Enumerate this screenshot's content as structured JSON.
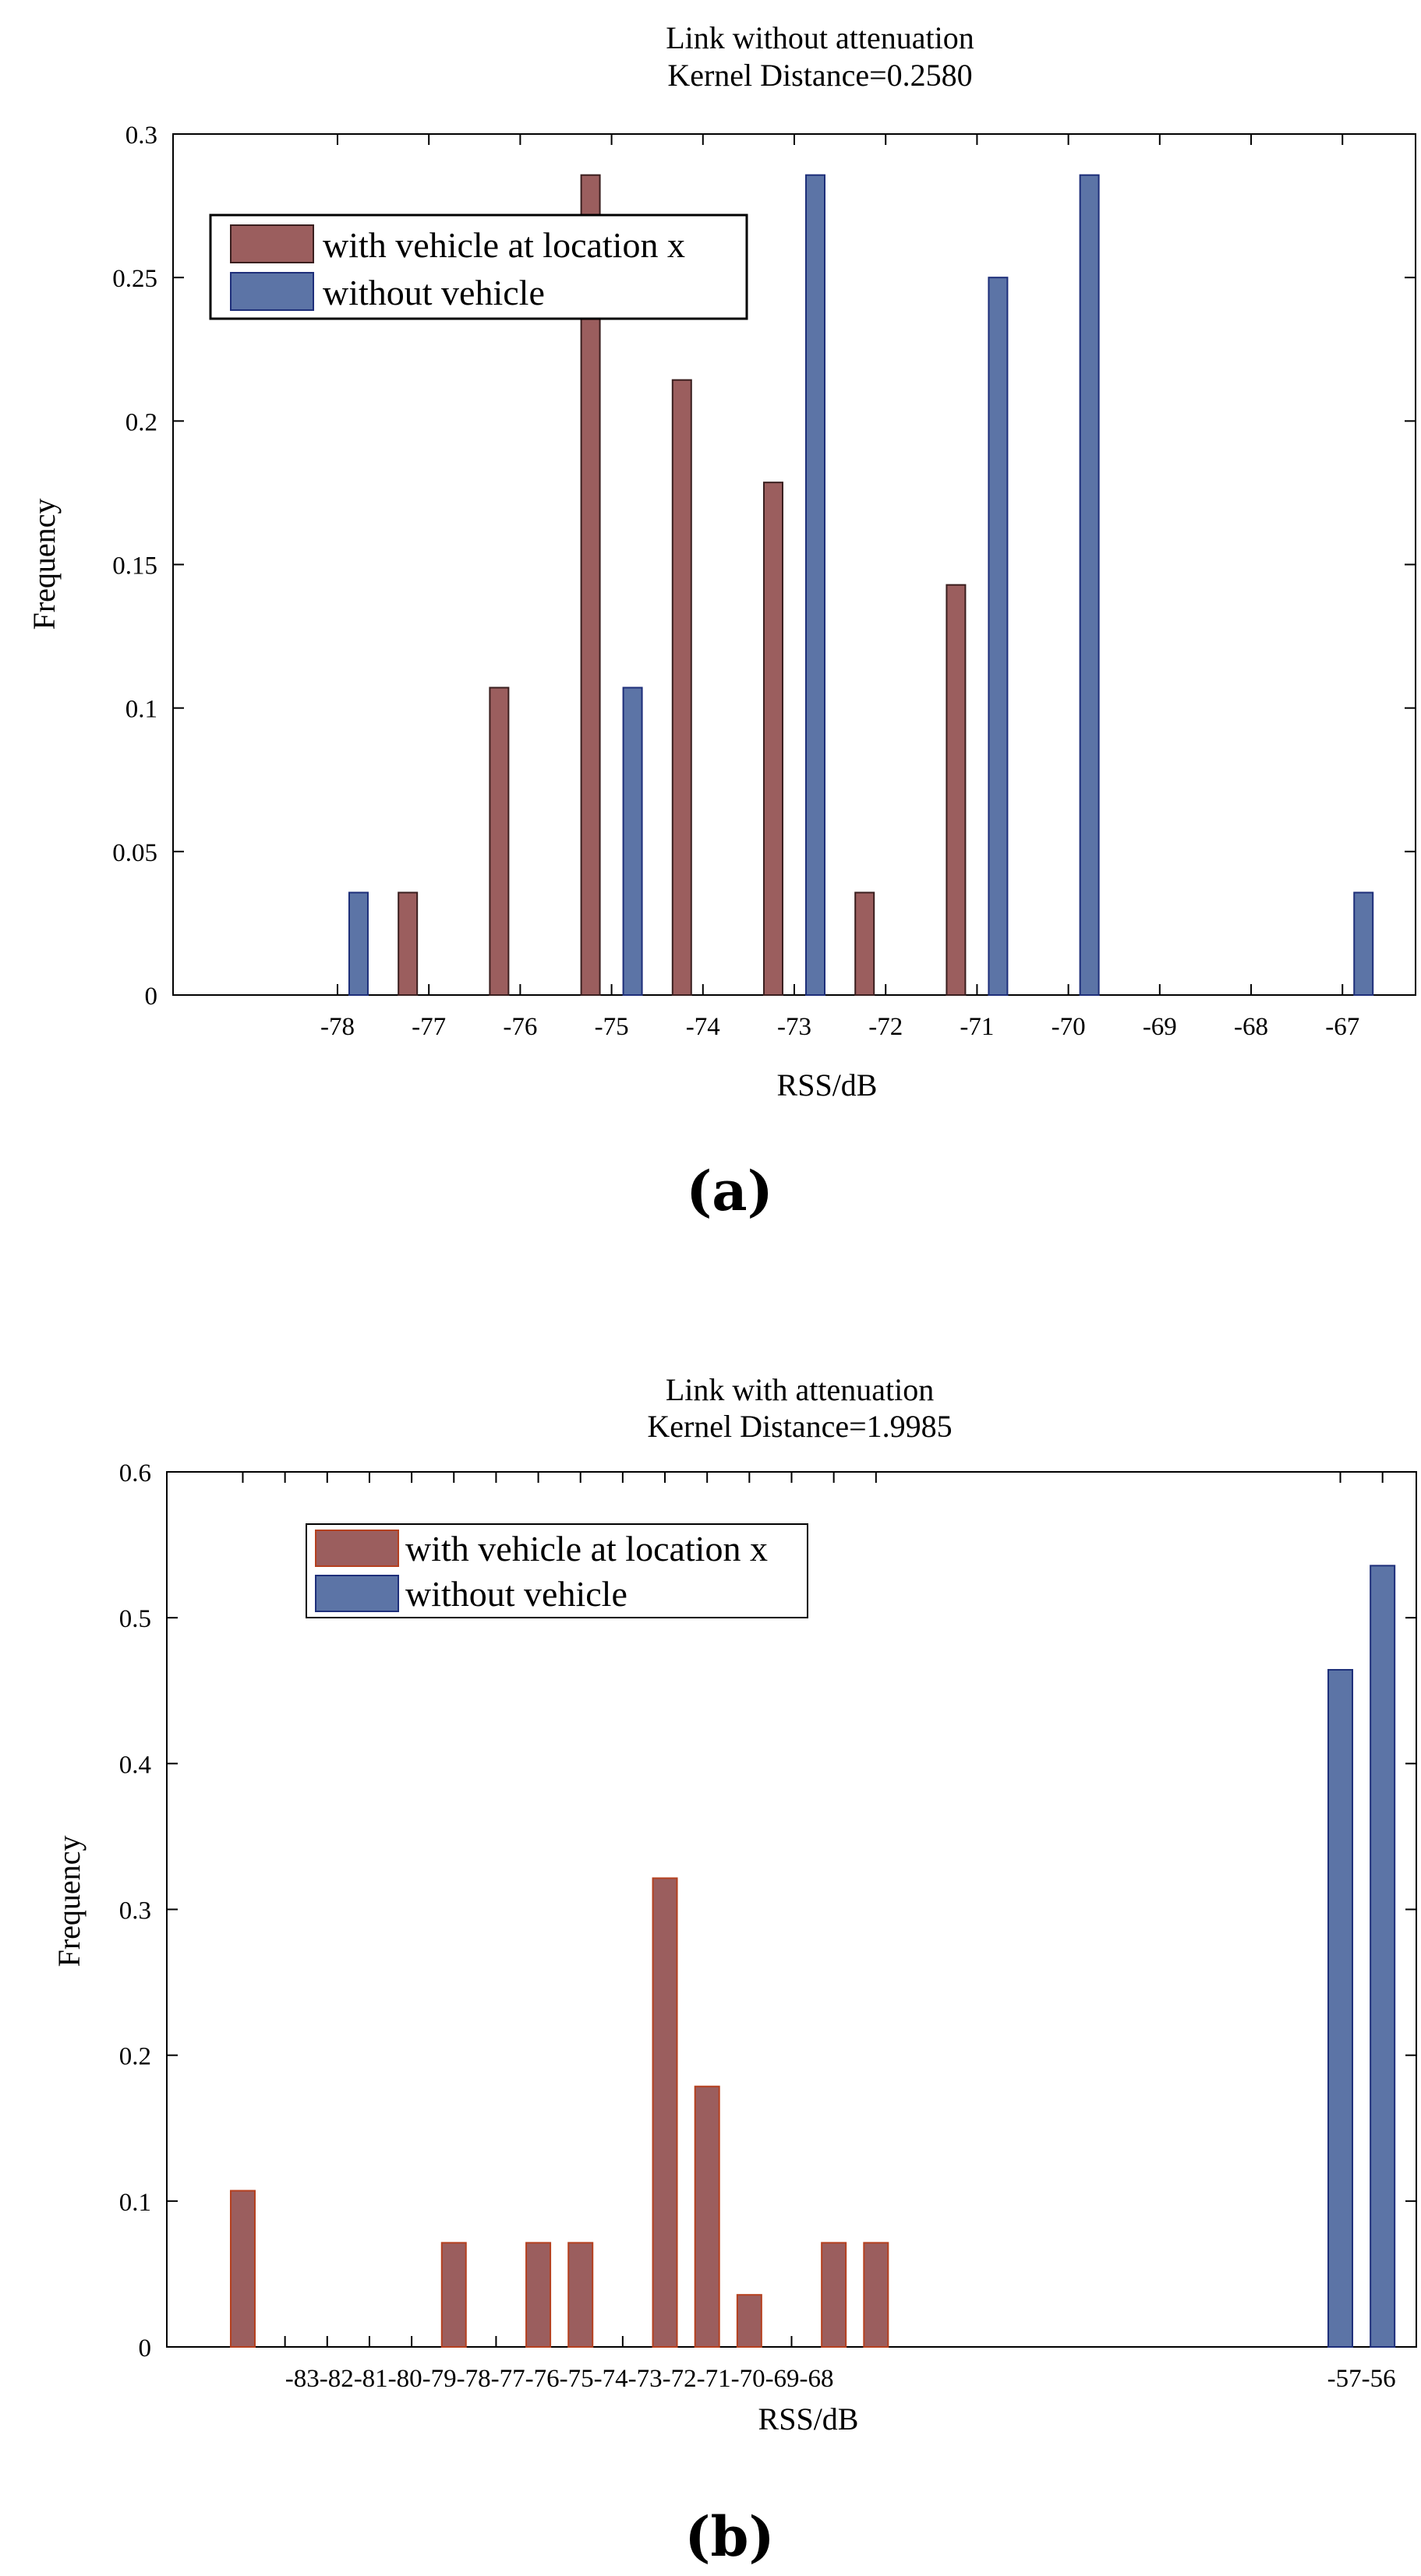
{
  "colors": {
    "with_fill": "#9B5E5E",
    "with_edge": "#3A1F1F",
    "with_edge_b": "#B5401F",
    "without_fill": "#5C74A6",
    "without_edge": "#1E2F7A"
  },
  "chart_data": [
    {
      "type": "bar",
      "panel_label": "(a)",
      "title_line1": "Link without attenuation",
      "title_line2": "Kernel Distance=0.2580",
      "xlabel": "RSS/dB",
      "ylabel": "Frequency",
      "xlim": [
        -79.8,
        -66.2
      ],
      "ylim": [
        0,
        0.3
      ],
      "yticks": [
        0,
        0.05,
        0.1,
        0.15,
        0.2,
        0.25,
        0.3
      ],
      "ytick_labels": [
        "0",
        "0.05",
        "0.1",
        "0.15",
        "0.2",
        "0.25",
        "0.3"
      ],
      "xticks": [
        -78,
        -77,
        -76,
        -75,
        -74,
        -73,
        -72,
        -71,
        -70,
        -69,
        -68,
        -67
      ],
      "xtick_labels": [
        "-78",
        "-77",
        "-76",
        "-75",
        "-74",
        "-73",
        "-72",
        "-71",
        "-70",
        "-69",
        "-68",
        "-67"
      ],
      "legend_position": "top-left",
      "series": [
        {
          "name": "with vehicle at location x",
          "x": [
            -78,
            -77,
            -76,
            -75,
            -74,
            -73,
            -72,
            -71,
            -70,
            -69,
            -68,
            -67
          ],
          "values": [
            0.0,
            0.0357,
            0.1071,
            0.2857,
            0.2143,
            0.1786,
            0.0357,
            0.1429,
            0.0,
            0.0,
            0.0,
            0.0
          ]
        },
        {
          "name": "without vehicle",
          "x": [
            -78,
            -77,
            -76,
            -75,
            -74,
            -73,
            -72,
            -71,
            -70,
            -69,
            -68,
            -67
          ],
          "values": [
            0.0357,
            0.0,
            0.0,
            0.1071,
            0.0,
            0.2857,
            0.0,
            0.25,
            0.2857,
            0.0,
            0.0,
            0.0357
          ]
        }
      ]
    },
    {
      "type": "bar",
      "panel_label": "(b)",
      "title_line1": "Link with attenuation",
      "title_line2": "Kernel Distance=1.9985",
      "xlabel": "RSS/dB",
      "ylabel": "Frequency",
      "xlim": [
        -84.8,
        -55.2
      ],
      "ylim": [
        0,
        0.6
      ],
      "yticks": [
        0,
        0.1,
        0.2,
        0.3,
        0.4,
        0.5,
        0.6
      ],
      "ytick_labels": [
        "0",
        "0.1",
        "0.2",
        "0.3",
        "0.4",
        "0.5",
        "0.6"
      ],
      "xtick_groups": [
        {
          "label": "-83-82-81-80-79-78-77-76-75-74-73-72-71-70-69-68",
          "center": -75.5
        },
        {
          "label": "-57-56",
          "center": -56.5
        }
      ],
      "legend_position": "top-left",
      "series": [
        {
          "name": "with vehicle at location x",
          "x": [
            -83,
            -82,
            -81,
            -80,
            -79,
            -78,
            -77,
            -76,
            -75,
            -74,
            -73,
            -72,
            -71,
            -70,
            -69,
            -68
          ],
          "values": [
            0.1071,
            0,
            0,
            0,
            0,
            0.0714,
            0,
            0.0714,
            0.0714,
            0,
            0.3214,
            0.1786,
            0.0357,
            0,
            0.0714,
            0.0714
          ]
        },
        {
          "name": "without vehicle",
          "x": [
            -57,
            -56
          ],
          "values": [
            0.4643,
            0.5357
          ]
        }
      ]
    }
  ]
}
